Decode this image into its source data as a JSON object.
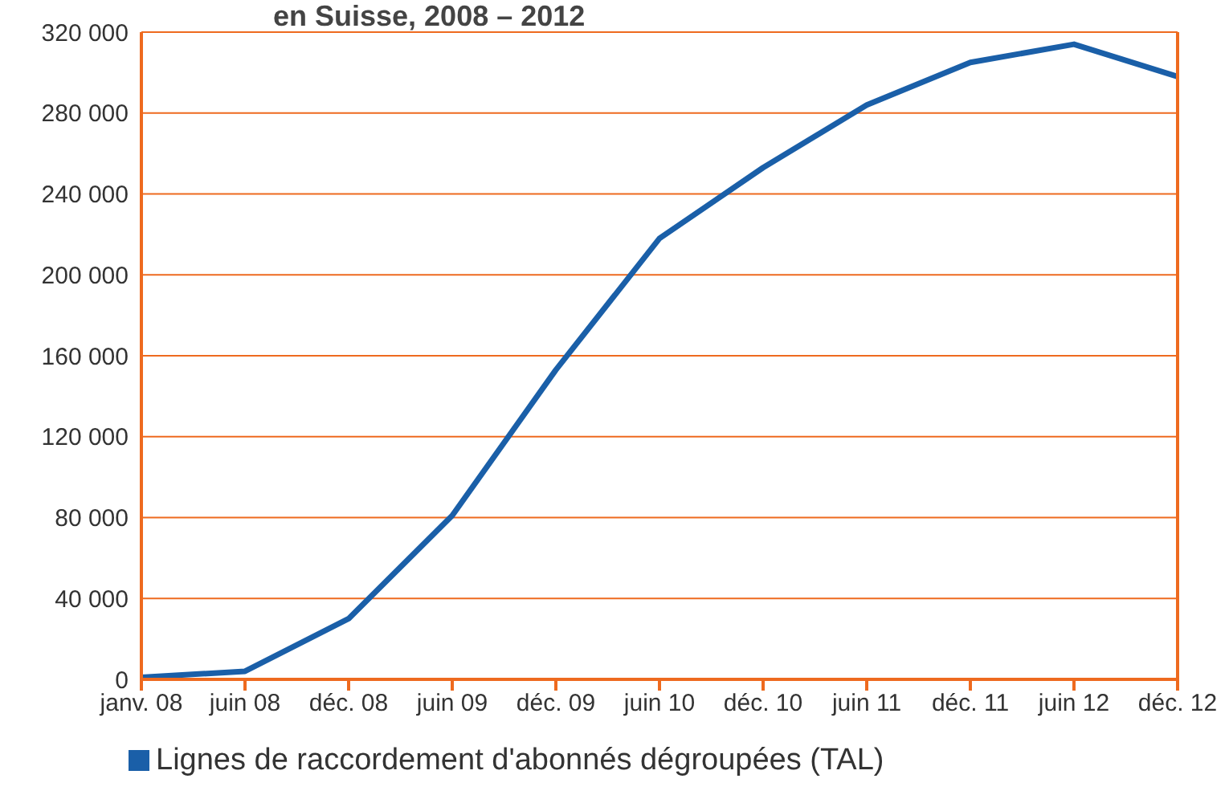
{
  "chart_data": {
    "type": "line",
    "title": "en Suisse, 2008 – 2012",
    "categories": [
      "janv. 08",
      "juin 08",
      "déc. 08",
      "juin 09",
      "déc. 09",
      "juin 10",
      "déc. 10",
      "juin 11",
      "déc. 11",
      "juin 12",
      "déc. 12"
    ],
    "series": [
      {
        "name": "Lignes de raccordement d'abonnés dégroupées (TAL)",
        "color": "#1a5fa8",
        "values": [
          1000,
          4000,
          30000,
          81000,
          153000,
          218000,
          253000,
          284000,
          305000,
          314000,
          298000
        ]
      }
    ],
    "ylim": [
      0,
      320000
    ],
    "yticks": [
      0,
      {
        "value": 40000,
        "label": "40 000"
      },
      {
        "value": 80000,
        "label": "80 000"
      },
      {
        "value": 120000,
        "label": "120 000"
      },
      {
        "value": 160000,
        "label": "160 000"
      },
      {
        "value": 200000,
        "label": "200 000"
      },
      {
        "value": 240000,
        "label": "240 000"
      },
      {
        "value": 280000,
        "label": "280 000"
      },
      {
        "value": 320000,
        "label": "320 000"
      }
    ],
    "grid": "y",
    "legend": "bottom left",
    "marker": "none",
    "line_style": "solid"
  }
}
